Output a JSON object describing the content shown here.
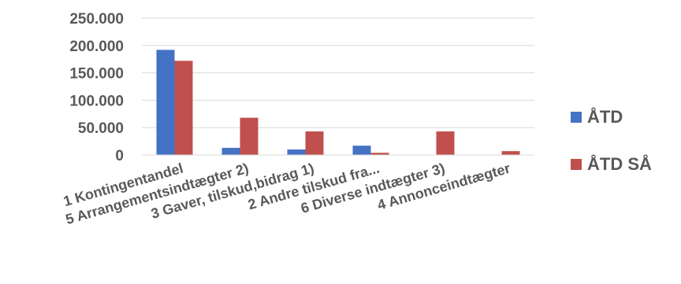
{
  "chart_data": {
    "type": "bar",
    "categories": [
      "1 Kontingentandel",
      "5 Arrangementsindtægter 2)",
      "3 Gaver, tilskud,bidrag   1)",
      "2 Andre tilskud fra...",
      "6 Diverse indtægter   3)",
      "4 Annonceindtægter"
    ],
    "series": [
      {
        "name": "ÅTD",
        "color": "#4472c4",
        "values": [
          192000,
          13000,
          10000,
          17000,
          0,
          0
        ]
      },
      {
        "name": "ÅTD SÅ",
        "color": "#c0504d",
        "values": [
          172000,
          68000,
          43000,
          4000,
          43000,
          7000
        ]
      }
    ],
    "yticks": [
      "0",
      "50.000",
      "100.000",
      "150.000",
      "200.000",
      "250.000"
    ],
    "ylim": [
      0,
      250000
    ],
    "grid": true,
    "legend_position": "right"
  }
}
